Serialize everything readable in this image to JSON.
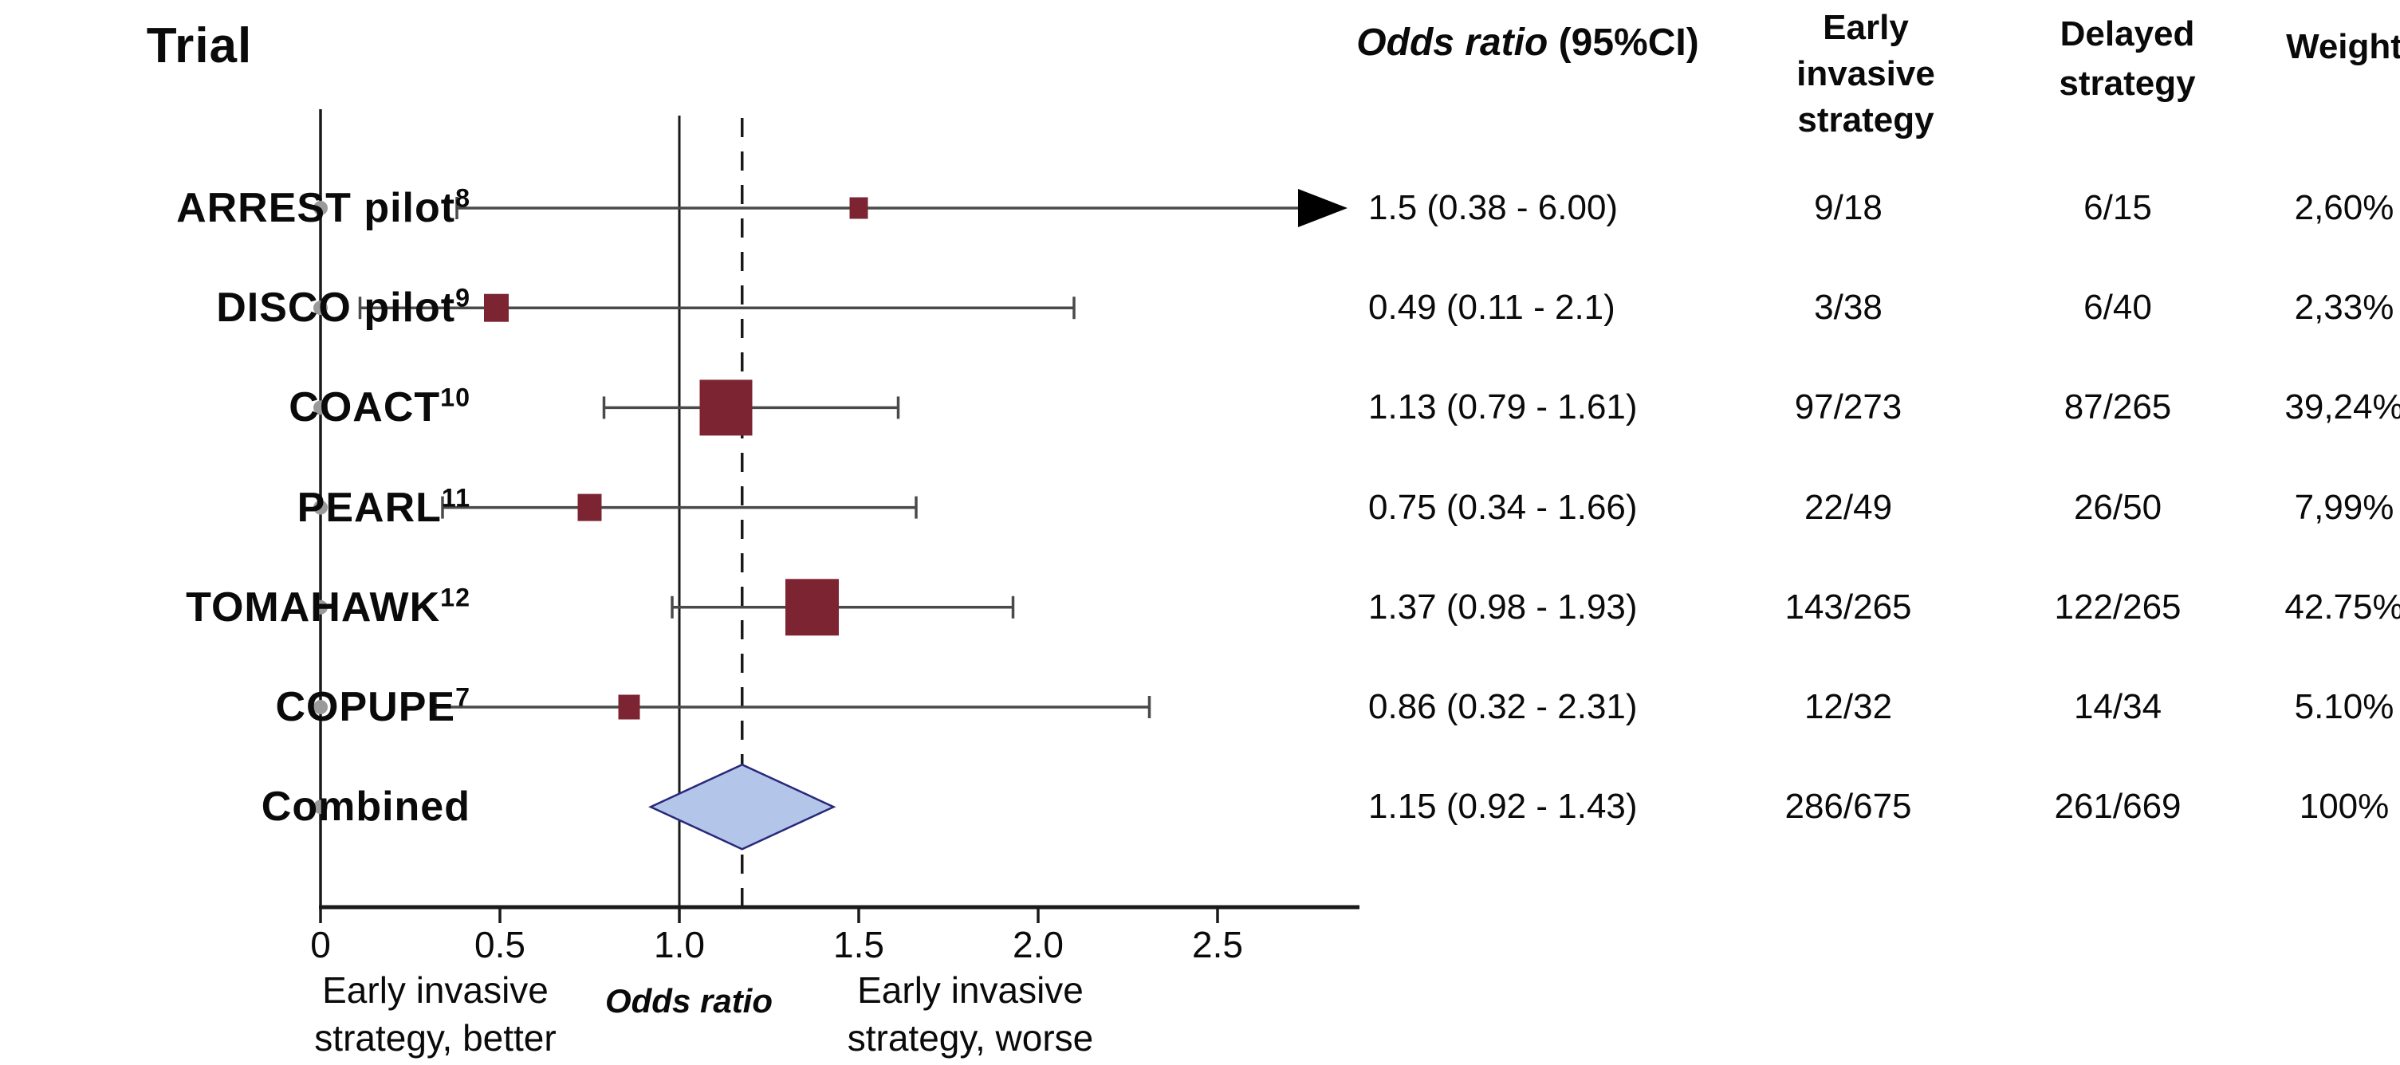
{
  "title": "Trial",
  "table_headers": {
    "odds_ratio_italic": "Odds ratio",
    "odds_ratio_rest": " (95%CI)",
    "early_line1": "Early",
    "early_line2": "invasive strategy",
    "delayed_line1": "Delayed",
    "delayed_line2": "strategy",
    "weight": "Weight"
  },
  "chart_data": {
    "type": "forest",
    "title": "Trial",
    "xlabel": "Odds ratio",
    "x_axis": {
      "ticks": [
        0,
        0.5,
        1.0,
        1.5,
        2.0,
        2.5
      ],
      "tick_labels": [
        "0",
        "0.5",
        "1.0",
        "1.5",
        "2.0",
        "2.5"
      ],
      "range": [
        0,
        2.9
      ],
      "reference_line_solid": 1.0,
      "reference_line_dashed": 1.175,
      "left_note_line1": "Early invasive",
      "left_note_line2": "strategy, better",
      "right_note_line1": "Early invasive",
      "right_note_line2": "strategy, worse"
    },
    "studies": [
      {
        "label": "ARREST pilot",
        "superscript": "8",
        "or": 1.5,
        "ci_low": 0.38,
        "ci_high": 6.0,
        "or_text": "1.5 (0.38 - 6.00)",
        "early": "9/18",
        "delayed": "6/15",
        "weight": "2,60%",
        "weight_pct": 2.6,
        "marker_px": 23,
        "arrow_right": true,
        "summary": false
      },
      {
        "label": "DISCO pilot",
        "superscript": "9",
        "or": 0.49,
        "ci_low": 0.11,
        "ci_high": 2.1,
        "or_text": "0.49 (0.11 - 2.1)",
        "early": "3/38",
        "delayed": "6/40",
        "weight": "2,33%",
        "weight_pct": 2.33,
        "marker_px": 31,
        "arrow_right": false,
        "summary": false
      },
      {
        "label": "COACT",
        "superscript": "10",
        "or": 1.13,
        "ci_low": 0.79,
        "ci_high": 1.61,
        "or_text": "1.13 (0.79 - 1.61)",
        "early": "97/273",
        "delayed": "87/265",
        "weight": "39,24%",
        "weight_pct": 39.24,
        "marker_px": 66,
        "arrow_right": false,
        "summary": false
      },
      {
        "label": "PEARL",
        "superscript": "11",
        "or": 0.75,
        "ci_low": 0.34,
        "ci_high": 1.66,
        "or_text": "0.75 (0.34 - 1.66)",
        "early": "22/49",
        "delayed": "26/50",
        "weight": "7,99%",
        "weight_pct": 7.99,
        "marker_px": 30,
        "arrow_right": false,
        "summary": false
      },
      {
        "label": "TOMAHAWK",
        "superscript": "12",
        "or": 1.37,
        "ci_low": 0.98,
        "ci_high": 1.93,
        "or_text": "1.37 (0.98 - 1.93)",
        "early": "143/265",
        "delayed": "122/265",
        "weight": "42.75%",
        "weight_pct": 42.75,
        "marker_px": 67,
        "arrow_right": false,
        "summary": false
      },
      {
        "label": "COPUPE",
        "superscript": "7",
        "or": 0.86,
        "ci_low": 0.32,
        "ci_high": 2.31,
        "or_text": "0.86 (0.32 - 2.31)",
        "early": "12/32",
        "delayed": "14/34",
        "weight": "5.10%",
        "weight_pct": 5.1,
        "marker_px": 27,
        "arrow_right": false,
        "summary": false
      },
      {
        "label": "Combined",
        "superscript": "",
        "or": 1.15,
        "ci_low": 0.92,
        "ci_high": 1.43,
        "or_text": "1.15 (0.92 - 1.43)",
        "early": "286/675",
        "delayed": "261/669",
        "weight": "100%",
        "weight_pct": 100,
        "marker_px": 0,
        "arrow_right": false,
        "summary": true
      }
    ],
    "legend_position": "none",
    "grid": false
  },
  "colors": {
    "square": "#7d2433",
    "diamond_fill": "#b3c5e9",
    "diamond_border": "#28287a",
    "ci_line": "#4a4a4a",
    "axis": "#1a1a1a",
    "dot": "#9a9a9a",
    "text": "#0a0a0a"
  }
}
